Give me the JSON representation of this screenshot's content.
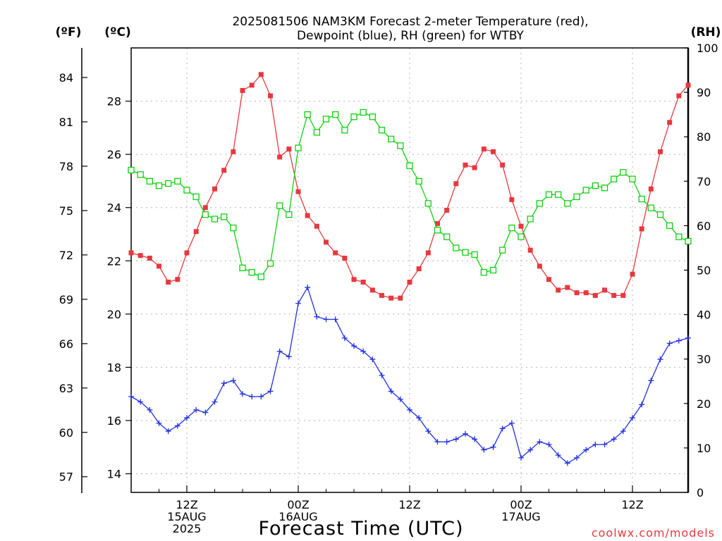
{
  "chart_data": {
    "type": "line",
    "title_line1": "2025081506 NAM3KM Forecast 2-meter Temperature (red),",
    "title_line2": "Dewpoint (blue), RH (green) for WTBY",
    "xlabel": "Forecast Time (UTC)",
    "credit": "coolwx.com/models",
    "axis_units": {
      "fahrenheit": "(ºF)",
      "celsius": "(ºC)",
      "rh": "(RH)"
    },
    "celsius_ticks": [
      "14",
      "16",
      "18",
      "20",
      "22",
      "24",
      "26",
      "28"
    ],
    "fahrenheit_ticks": [
      "57",
      "60",
      "63",
      "66",
      "69",
      "72",
      "75",
      "78",
      "81",
      "84"
    ],
    "rh_ticks": [
      "0",
      "10",
      "20",
      "30",
      "40",
      "50",
      "60",
      "70",
      "80",
      "90",
      "100"
    ],
    "ylim_celsius": [
      13.3,
      30.0
    ],
    "ylim_rh": [
      0,
      100
    ],
    "xlim_hours": [
      6,
      66
    ],
    "grid": true,
    "x_ticks": [
      {
        "hour": 12,
        "lines": [
          "12Z",
          "15AUG",
          "2025"
        ]
      },
      {
        "hour": 24,
        "lines": [
          "00Z",
          "16AUG"
        ]
      },
      {
        "hour": 36,
        "lines": [
          "12Z"
        ]
      },
      {
        "hour": 48,
        "lines": [
          "00Z",
          "17AUG"
        ]
      },
      {
        "hour": 60,
        "lines": [
          "12Z"
        ]
      }
    ],
    "series": [
      {
        "name": "Temperature",
        "axis": "celsius",
        "color": "#e8383d",
        "marker": "filled-square",
        "x": [
          6,
          7,
          8,
          9,
          10,
          11,
          12,
          13,
          14,
          15,
          16,
          17,
          18,
          19,
          20,
          21,
          22,
          23,
          24,
          25,
          26,
          27,
          28,
          29,
          30,
          31,
          32,
          33,
          34,
          35,
          36,
          37,
          38,
          39,
          40,
          41,
          42,
          43,
          44,
          45,
          46,
          47,
          48,
          49,
          50,
          51,
          52,
          53,
          54,
          55,
          56,
          57,
          58,
          59,
          60,
          61,
          62,
          63,
          64,
          65,
          66
        ],
        "values": [
          22.3,
          22.2,
          22.1,
          21.8,
          21.2,
          21.3,
          22.3,
          23.1,
          24.0,
          24.7,
          25.4,
          26.1,
          28.4,
          28.6,
          29.0,
          28.2,
          25.9,
          26.2,
          24.6,
          23.7,
          23.3,
          22.7,
          22.3,
          22.1,
          21.3,
          21.2,
          20.9,
          20.7,
          20.6,
          20.6,
          21.2,
          21.7,
          22.3,
          23.4,
          23.9,
          24.9,
          25.6,
          25.5,
          26.2,
          26.1,
          25.6,
          24.3,
          23.3,
          22.4,
          21.8,
          21.3,
          20.9,
          21.0,
          20.8,
          20.8,
          20.7,
          20.9,
          20.7,
          20.7,
          21.5,
          23.2,
          24.7,
          26.1,
          27.2,
          28.2,
          28.6
        ]
      },
      {
        "name": "Dewpoint",
        "axis": "celsius",
        "color": "#2030e0",
        "marker": "plus",
        "x": [
          6,
          7,
          8,
          9,
          10,
          11,
          12,
          13,
          14,
          15,
          16,
          17,
          18,
          19,
          20,
          21,
          22,
          23,
          24,
          25,
          26,
          27,
          28,
          29,
          30,
          31,
          32,
          33,
          34,
          35,
          36,
          37,
          38,
          39,
          40,
          41,
          42,
          43,
          44,
          45,
          46,
          47,
          48,
          49,
          50,
          51,
          52,
          53,
          54,
          55,
          56,
          57,
          58,
          59,
          60,
          61,
          62,
          63,
          64,
          65,
          66
        ],
        "values": [
          16.9,
          16.7,
          16.4,
          15.9,
          15.6,
          15.8,
          16.1,
          16.4,
          16.3,
          16.7,
          17.4,
          17.5,
          17.0,
          16.9,
          16.9,
          17.1,
          18.6,
          18.4,
          20.4,
          21.0,
          19.9,
          19.8,
          19.8,
          19.1,
          18.8,
          18.6,
          18.3,
          17.7,
          17.1,
          16.8,
          16.4,
          16.1,
          15.6,
          15.2,
          15.2,
          15.3,
          15.5,
          15.3,
          14.9,
          15.0,
          15.7,
          15.9,
          14.6,
          14.9,
          15.2,
          15.1,
          14.7,
          14.4,
          14.6,
          14.9,
          15.1,
          15.1,
          15.3,
          15.6,
          16.1,
          16.6,
          17.5,
          18.3,
          18.9,
          19.0,
          19.1
        ]
      },
      {
        "name": "RH",
        "axis": "rh",
        "color": "#10d010",
        "marker": "open-square",
        "x": [
          6,
          7,
          8,
          9,
          10,
          11,
          12,
          13,
          14,
          15,
          16,
          17,
          18,
          19,
          20,
          21,
          22,
          23,
          24,
          25,
          26,
          27,
          28,
          29,
          30,
          31,
          32,
          33,
          34,
          35,
          36,
          37,
          38,
          39,
          40,
          41,
          42,
          43,
          44,
          45,
          46,
          47,
          48,
          49,
          50,
          51,
          52,
          53,
          54,
          55,
          56,
          57,
          58,
          59,
          60,
          61,
          62,
          63,
          64,
          65,
          66
        ],
        "values": [
          72.5,
          71.5,
          70,
          69,
          69.5,
          70,
          68,
          66.5,
          62.5,
          61.5,
          62,
          59.5,
          50.5,
          49.5,
          48.5,
          51.5,
          64.5,
          62.5,
          77.5,
          85,
          81,
          84,
          85,
          81.5,
          84.5,
          85.5,
          84.5,
          81.5,
          79.5,
          78,
          73.5,
          70,
          65,
          59,
          57.5,
          55,
          54,
          53.5,
          49.5,
          50,
          54.5,
          59.5,
          57.5,
          61.5,
          65,
          67,
          67,
          65,
          66.5,
          68,
          69,
          68.5,
          70.5,
          72,
          70.5,
          66,
          64,
          62.5,
          60,
          57.5,
          56.5
        ]
      }
    ]
  }
}
